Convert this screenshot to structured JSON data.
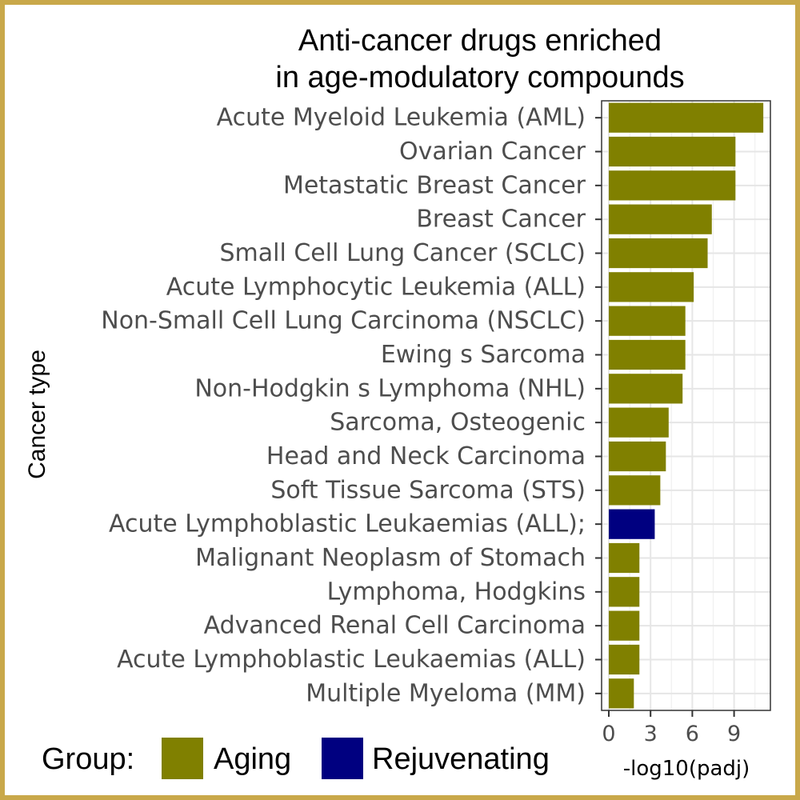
{
  "chart_data": {
    "type": "bar",
    "orientation": "horizontal",
    "title": [
      "Anti-cancer drugs enriched",
      "in age-modulatory compounds"
    ],
    "xlabel": "-log10(padj)",
    "ylabel": "Cancer type",
    "xlim": [
      0,
      11.5
    ],
    "xticks": [
      0,
      3,
      6,
      9
    ],
    "grid": true,
    "legend": {
      "title": "Group:",
      "position": "bottom",
      "entries": [
        {
          "label": "Aging",
          "color": "#808000"
        },
        {
          "label": "Rejuvenating",
          "color": "#000080"
        }
      ]
    },
    "categories": [
      "Acute Myeloid Leukemia (AML)",
      "Ovarian Cancer",
      "Metastatic Breast Cancer",
      "Breast Cancer",
      "Small Cell Lung Cancer (SCLC)",
      "Acute Lymphocytic Leukemia (ALL)",
      "Non-Small Cell Lung Carcinoma (NSCLC)",
      "Ewing s Sarcoma",
      "Non-Hodgkin s Lymphoma (NHL)",
      "Sarcoma, Osteogenic",
      "Head and Neck Carcinoma",
      "Soft Tissue Sarcoma (STS)",
      "Acute Lymphoblastic Leukaemias (ALL);",
      "Malignant Neoplasm of Stomach",
      "Lymphoma, Hodgkins",
      "Advanced Renal Cell Carcinoma",
      "Acute Lymphoblastic Leukaemias (ALL)",
      "Multiple Myeloma (MM)"
    ],
    "values": [
      11.1,
      9.1,
      9.1,
      7.4,
      7.1,
      6.1,
      5.5,
      5.5,
      5.3,
      4.3,
      4.1,
      3.7,
      3.3,
      2.2,
      2.2,
      2.2,
      2.2,
      1.8
    ],
    "groups": [
      "Aging",
      "Aging",
      "Aging",
      "Aging",
      "Aging",
      "Aging",
      "Aging",
      "Aging",
      "Aging",
      "Aging",
      "Aging",
      "Aging",
      "Rejuvenating",
      "Aging",
      "Aging",
      "Aging",
      "Aging",
      "Aging"
    ]
  }
}
